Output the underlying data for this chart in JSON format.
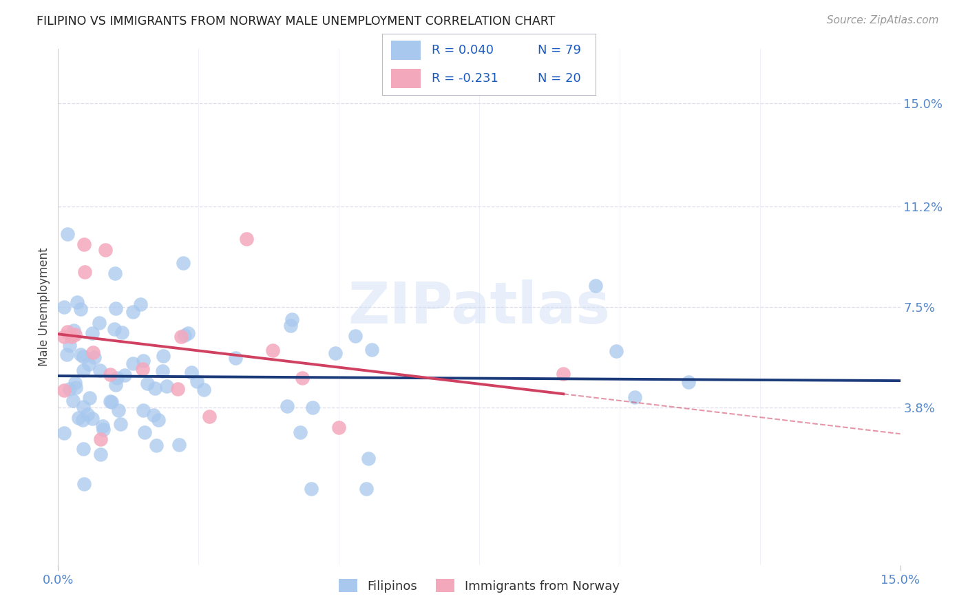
{
  "title": "FILIPINO VS IMMIGRANTS FROM NORWAY MALE UNEMPLOYMENT CORRELATION CHART",
  "source": "Source: ZipAtlas.com",
  "ylabel": "Male Unemployment",
  "xlim": [
    0.0,
    0.15
  ],
  "ylim": [
    -0.02,
    0.17
  ],
  "yticks": [
    0.038,
    0.075,
    0.112,
    0.15
  ],
  "ytick_labels": [
    "3.8%",
    "7.5%",
    "11.2%",
    "15.0%"
  ],
  "watermark": "ZIPatlas",
  "blue_color": "#A8C8EE",
  "pink_color": "#F4A8BC",
  "blue_line_color": "#1a3a7a",
  "pink_line_color": "#D04060",
  "tick_color": "#5588CC",
  "grid_color": "#DDDDEE",
  "fil_intercept": 0.048,
  "fil_slope": 0.08,
  "nor_intercept": 0.068,
  "nor_slope": -0.42
}
